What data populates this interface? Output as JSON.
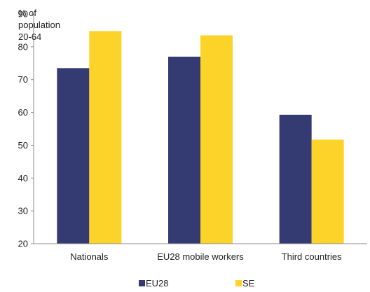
{
  "chart_data": {
    "type": "bar",
    "title": "",
    "unit_label_lines": [
      "% of",
      "population",
      "20-64"
    ],
    "xlabel": "",
    "ylabel": "",
    "categories": [
      "Nationals",
      "EU28 mobile workers",
      "Third countries"
    ],
    "series": [
      {
        "name": "EU28",
        "color": "#343B72",
        "values": [
          73.5,
          77,
          59.3
        ]
      },
      {
        "name": "SE",
        "color": "#FCD328",
        "values": [
          84.8,
          83.5,
          51.7
        ]
      }
    ],
    "ylim": [
      20,
      90
    ],
    "yticks": [
      20,
      30,
      40,
      50,
      60,
      70,
      80,
      90
    ],
    "grid": false,
    "legend_position": "bottom"
  }
}
